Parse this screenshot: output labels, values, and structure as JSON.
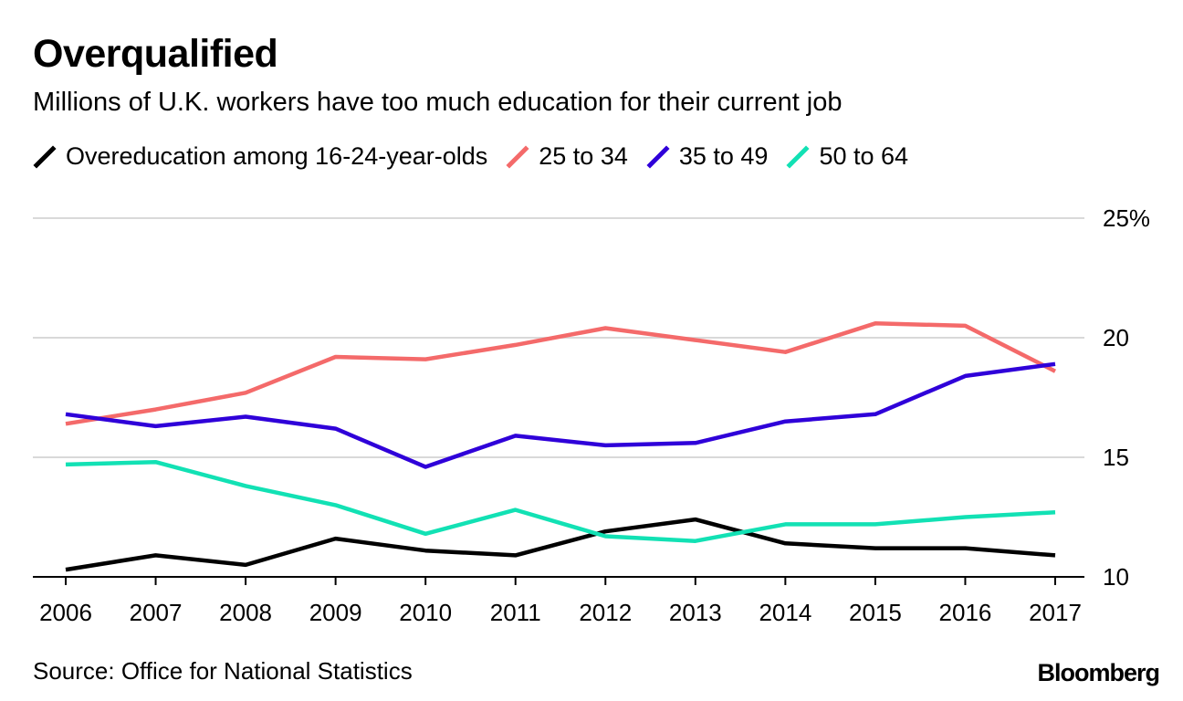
{
  "chart_data": {
    "type": "line",
    "title": "Overqualified",
    "subtitle": "Millions of U.K. workers have too much education for their current job",
    "x": [
      "2006",
      "2007",
      "2008",
      "2009",
      "2010",
      "2011",
      "2012",
      "2013",
      "2014",
      "2015",
      "2016",
      "2017"
    ],
    "ylim": [
      10,
      25
    ],
    "yticks": [
      10,
      15,
      20,
      25
    ],
    "ytick_labels": [
      "10",
      "15",
      "20",
      "25%"
    ],
    "grid": true,
    "legend_position": "top-left",
    "series": [
      {
        "name": "Overeducation among 16-24-year-olds",
        "color": "#000000",
        "values": [
          10.3,
          10.9,
          10.5,
          11.6,
          11.1,
          10.9,
          11.9,
          12.4,
          11.4,
          11.2,
          11.2,
          10.9
        ]
      },
      {
        "name": "25 to 34",
        "color": "#f46a6a",
        "values": [
          16.4,
          17.0,
          17.7,
          19.2,
          19.1,
          19.7,
          20.4,
          19.9,
          19.4,
          20.6,
          20.5,
          18.6
        ]
      },
      {
        "name": "35 to 49",
        "color": "#2f00d9",
        "values": [
          16.8,
          16.3,
          16.7,
          16.2,
          14.6,
          15.9,
          15.5,
          15.6,
          16.5,
          16.8,
          18.4,
          18.9
        ]
      },
      {
        "name": "50 to 64",
        "color": "#12e1b4",
        "values": [
          14.7,
          14.8,
          13.8,
          13.0,
          11.8,
          12.8,
          11.7,
          11.5,
          12.2,
          12.2,
          12.5,
          12.7
        ]
      }
    ]
  },
  "footer": {
    "source": "Source: Office for National Statistics",
    "brand": "Bloomberg"
  }
}
